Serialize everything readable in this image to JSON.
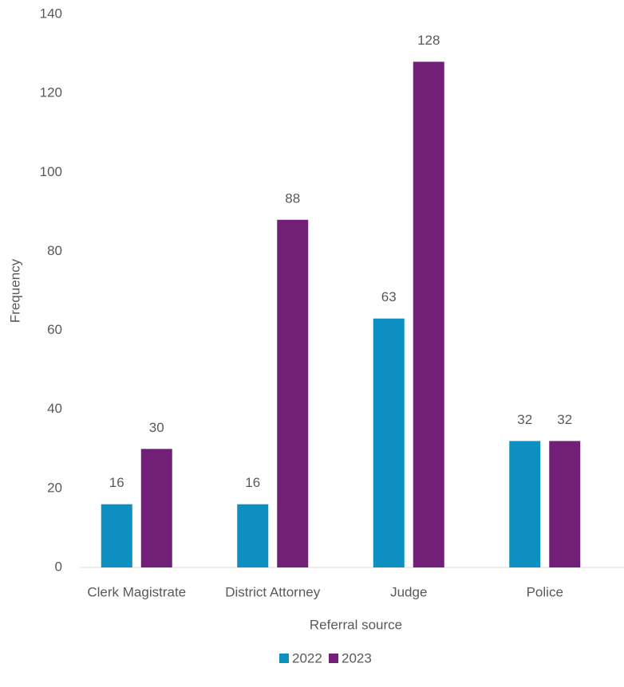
{
  "chart_data": {
    "type": "bar",
    "x_label": "Referral source",
    "y_label": "Frequency",
    "categories": [
      "Clerk Magistrate",
      "District Attorney",
      "Judge",
      "Police"
    ],
    "series": [
      {
        "name": "2022",
        "color": "#0e8fc1",
        "values": [
          16,
          16,
          63,
          32
        ]
      },
      {
        "name": "2023",
        "color": "#722077",
        "values": [
          30,
          88,
          128,
          32
        ]
      }
    ],
    "ylim": [
      0,
      140
    ],
    "yticks": [
      0,
      20,
      40,
      60,
      80,
      100,
      120,
      140
    ],
    "grid": false,
    "legend": "bottom"
  }
}
